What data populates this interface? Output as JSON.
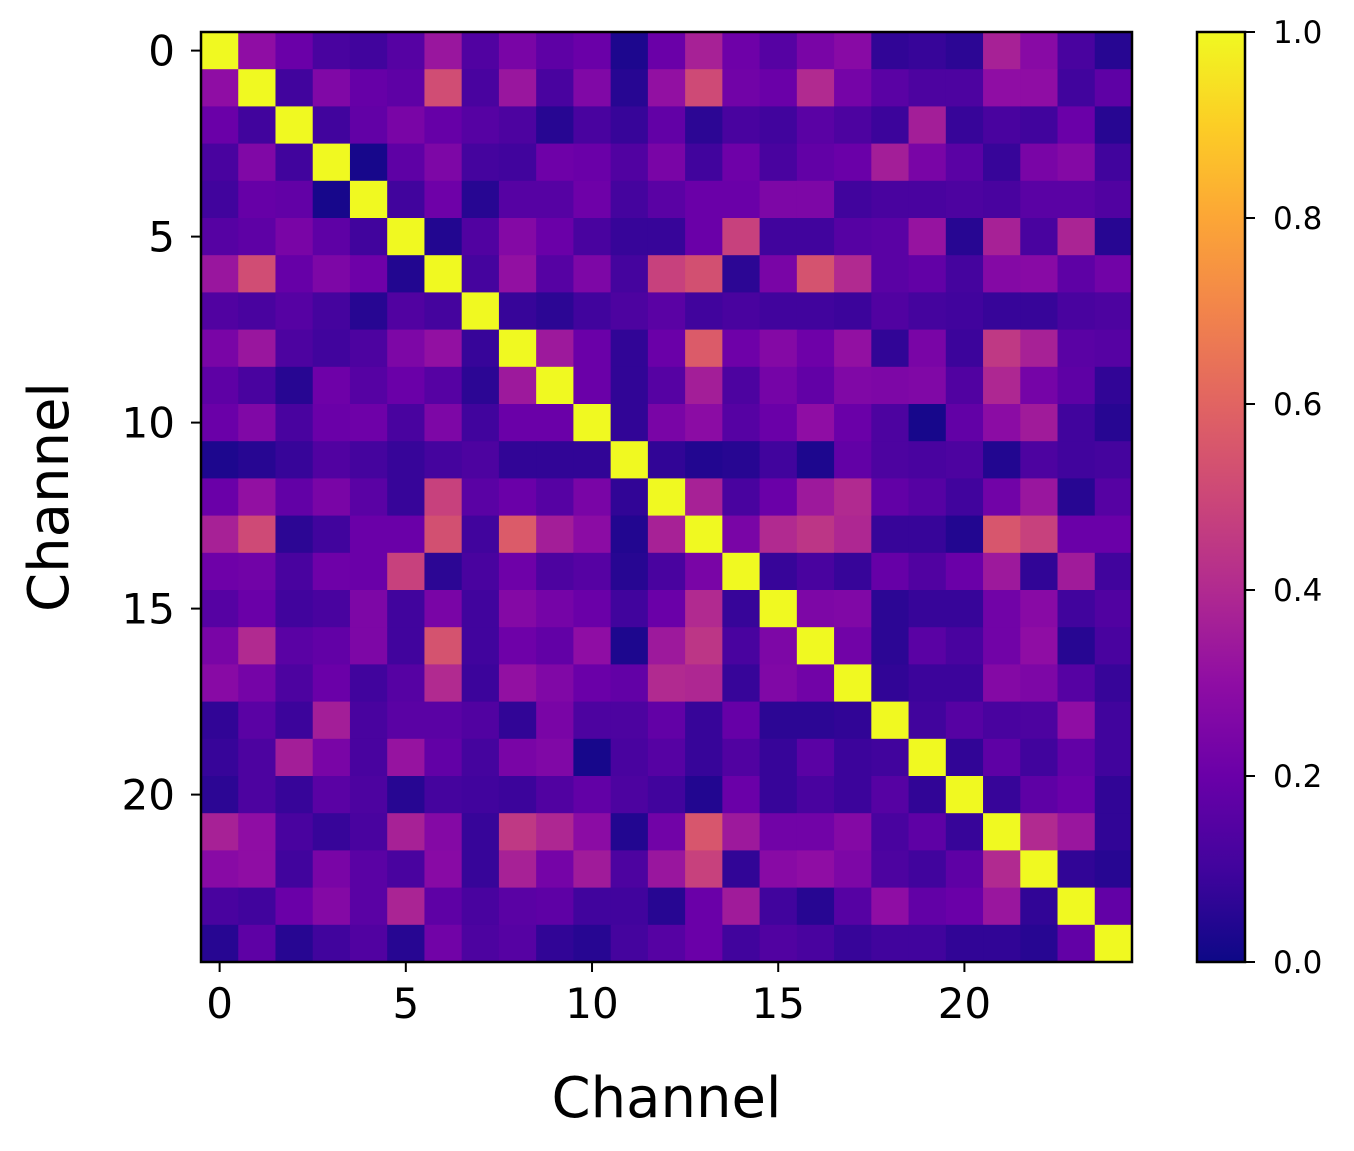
{
  "chart_data": {
    "type": "heatmap",
    "title": "",
    "xlabel": "Channel",
    "ylabel": "Channel",
    "colormap": "plasma",
    "clim": [
      0.0,
      1.0
    ],
    "n": 25,
    "xticks": [
      0,
      5,
      10,
      15,
      20
    ],
    "yticks": [
      0,
      5,
      10,
      15,
      20
    ],
    "xtick_labels": [
      "0",
      "5",
      "10",
      "15",
      "20"
    ],
    "ytick_labels": [
      "0",
      "5",
      "10",
      "15",
      "20"
    ],
    "colorbar_ticks": [
      0.0,
      0.2,
      0.4,
      0.6,
      0.8,
      1.0
    ],
    "colorbar_tick_labels": [
      "0.0",
      "0.2",
      "0.4",
      "0.6",
      "0.8",
      "1.0"
    ],
    "matrix": [
      [
        1.0,
        0.3,
        0.2,
        0.12,
        0.1,
        0.15,
        0.33,
        0.14,
        0.24,
        0.17,
        0.2,
        0.03,
        0.2,
        0.37,
        0.21,
        0.15,
        0.24,
        0.28,
        0.07,
        0.08,
        0.06,
        0.37,
        0.28,
        0.12,
        0.05
      ],
      [
        0.3,
        1.0,
        0.1,
        0.26,
        0.19,
        0.17,
        0.52,
        0.12,
        0.33,
        0.12,
        0.26,
        0.05,
        0.31,
        0.51,
        0.22,
        0.2,
        0.4,
        0.23,
        0.16,
        0.13,
        0.13,
        0.3,
        0.3,
        0.1,
        0.17
      ],
      [
        0.2,
        0.1,
        1.0,
        0.1,
        0.18,
        0.24,
        0.19,
        0.15,
        0.13,
        0.05,
        0.12,
        0.08,
        0.18,
        0.06,
        0.12,
        0.1,
        0.16,
        0.13,
        0.09,
        0.36,
        0.08,
        0.12,
        0.1,
        0.2,
        0.05
      ],
      [
        0.12,
        0.26,
        0.1,
        1.0,
        0.02,
        0.17,
        0.25,
        0.11,
        0.1,
        0.21,
        0.2,
        0.14,
        0.24,
        0.1,
        0.21,
        0.12,
        0.18,
        0.2,
        0.36,
        0.24,
        0.16,
        0.08,
        0.24,
        0.27,
        0.1
      ],
      [
        0.1,
        0.19,
        0.18,
        0.02,
        1.0,
        0.1,
        0.21,
        0.05,
        0.15,
        0.15,
        0.21,
        0.11,
        0.16,
        0.2,
        0.2,
        0.25,
        0.25,
        0.1,
        0.12,
        0.12,
        0.13,
        0.12,
        0.16,
        0.16,
        0.14
      ],
      [
        0.15,
        0.17,
        0.24,
        0.17,
        0.1,
        1.0,
        0.04,
        0.14,
        0.27,
        0.2,
        0.12,
        0.08,
        0.08,
        0.2,
        0.48,
        0.1,
        0.1,
        0.15,
        0.16,
        0.32,
        0.05,
        0.37,
        0.12,
        0.38,
        0.05
      ],
      [
        0.33,
        0.52,
        0.19,
        0.25,
        0.21,
        0.04,
        1.0,
        0.11,
        0.31,
        0.15,
        0.25,
        0.11,
        0.48,
        0.53,
        0.06,
        0.24,
        0.54,
        0.4,
        0.16,
        0.18,
        0.11,
        0.27,
        0.28,
        0.17,
        0.22
      ],
      [
        0.14,
        0.12,
        0.15,
        0.11,
        0.05,
        0.14,
        0.11,
        1.0,
        0.08,
        0.06,
        0.1,
        0.13,
        0.16,
        0.1,
        0.12,
        0.1,
        0.1,
        0.09,
        0.14,
        0.11,
        0.1,
        0.08,
        0.08,
        0.12,
        0.13
      ],
      [
        0.24,
        0.33,
        0.13,
        0.1,
        0.13,
        0.25,
        0.31,
        0.08,
        1.0,
        0.34,
        0.2,
        0.07,
        0.2,
        0.57,
        0.21,
        0.27,
        0.21,
        0.31,
        0.07,
        0.24,
        0.09,
        0.45,
        0.37,
        0.16,
        0.15
      ],
      [
        0.17,
        0.12,
        0.05,
        0.21,
        0.15,
        0.2,
        0.15,
        0.06,
        0.34,
        1.0,
        0.2,
        0.07,
        0.15,
        0.36,
        0.13,
        0.23,
        0.18,
        0.26,
        0.25,
        0.26,
        0.14,
        0.39,
        0.23,
        0.17,
        0.07
      ],
      [
        0.2,
        0.26,
        0.12,
        0.2,
        0.21,
        0.12,
        0.25,
        0.1,
        0.2,
        0.2,
        1.0,
        0.07,
        0.24,
        0.29,
        0.15,
        0.2,
        0.3,
        0.2,
        0.13,
        0.02,
        0.18,
        0.29,
        0.35,
        0.1,
        0.05
      ],
      [
        0.03,
        0.05,
        0.08,
        0.14,
        0.11,
        0.08,
        0.11,
        0.13,
        0.07,
        0.07,
        0.07,
        1.0,
        0.07,
        0.04,
        0.05,
        0.1,
        0.03,
        0.18,
        0.13,
        0.12,
        0.13,
        0.04,
        0.13,
        0.1,
        0.11
      ],
      [
        0.2,
        0.31,
        0.18,
        0.24,
        0.16,
        0.08,
        0.48,
        0.16,
        0.2,
        0.15,
        0.24,
        0.07,
        1.0,
        0.37,
        0.12,
        0.2,
        0.34,
        0.4,
        0.18,
        0.15,
        0.1,
        0.22,
        0.33,
        0.05,
        0.15
      ],
      [
        0.37,
        0.51,
        0.06,
        0.1,
        0.2,
        0.2,
        0.53,
        0.1,
        0.57,
        0.36,
        0.29,
        0.04,
        0.37,
        1.0,
        0.24,
        0.4,
        0.44,
        0.39,
        0.08,
        0.08,
        0.04,
        0.55,
        0.48,
        0.2,
        0.2
      ],
      [
        0.21,
        0.22,
        0.12,
        0.21,
        0.2,
        0.48,
        0.06,
        0.12,
        0.21,
        0.13,
        0.15,
        0.05,
        0.12,
        0.24,
        1.0,
        0.08,
        0.12,
        0.08,
        0.19,
        0.14,
        0.2,
        0.34,
        0.07,
        0.35,
        0.1
      ],
      [
        0.15,
        0.2,
        0.1,
        0.12,
        0.25,
        0.1,
        0.24,
        0.1,
        0.27,
        0.23,
        0.2,
        0.1,
        0.2,
        0.4,
        0.08,
        1.0,
        0.25,
        0.26,
        0.06,
        0.08,
        0.08,
        0.22,
        0.28,
        0.1,
        0.14
      ],
      [
        0.24,
        0.4,
        0.16,
        0.18,
        0.25,
        0.1,
        0.54,
        0.1,
        0.21,
        0.18,
        0.3,
        0.03,
        0.34,
        0.44,
        0.12,
        0.25,
        1.0,
        0.22,
        0.06,
        0.16,
        0.12,
        0.22,
        0.3,
        0.05,
        0.12
      ],
      [
        0.28,
        0.23,
        0.13,
        0.2,
        0.1,
        0.15,
        0.4,
        0.09,
        0.31,
        0.26,
        0.2,
        0.18,
        0.4,
        0.39,
        0.08,
        0.26,
        0.22,
        1.0,
        0.07,
        0.09,
        0.09,
        0.27,
        0.25,
        0.15,
        0.08
      ],
      [
        0.07,
        0.16,
        0.09,
        0.36,
        0.12,
        0.16,
        0.16,
        0.14,
        0.07,
        0.24,
        0.13,
        0.13,
        0.18,
        0.08,
        0.19,
        0.06,
        0.06,
        0.07,
        1.0,
        0.1,
        0.15,
        0.12,
        0.13,
        0.3,
        0.1
      ],
      [
        0.08,
        0.13,
        0.36,
        0.24,
        0.12,
        0.32,
        0.18,
        0.11,
        0.24,
        0.26,
        0.02,
        0.12,
        0.15,
        0.08,
        0.14,
        0.08,
        0.16,
        0.09,
        0.1,
        1.0,
        0.07,
        0.17,
        0.1,
        0.18,
        0.1
      ],
      [
        0.06,
        0.13,
        0.08,
        0.16,
        0.13,
        0.05,
        0.11,
        0.1,
        0.09,
        0.14,
        0.18,
        0.13,
        0.1,
        0.04,
        0.2,
        0.08,
        0.12,
        0.09,
        0.15,
        0.07,
        1.0,
        0.08,
        0.17,
        0.2,
        0.07
      ],
      [
        0.37,
        0.3,
        0.12,
        0.08,
        0.12,
        0.37,
        0.27,
        0.08,
        0.45,
        0.39,
        0.29,
        0.04,
        0.22,
        0.55,
        0.34,
        0.22,
        0.22,
        0.27,
        0.12,
        0.17,
        0.08,
        1.0,
        0.4,
        0.33,
        0.07
      ],
      [
        0.28,
        0.3,
        0.1,
        0.24,
        0.16,
        0.12,
        0.28,
        0.08,
        0.37,
        0.23,
        0.35,
        0.13,
        0.33,
        0.48,
        0.07,
        0.28,
        0.3,
        0.25,
        0.13,
        0.1,
        0.17,
        0.4,
        1.0,
        0.07,
        0.05
      ],
      [
        0.12,
        0.1,
        0.2,
        0.27,
        0.16,
        0.38,
        0.17,
        0.12,
        0.16,
        0.17,
        0.1,
        0.1,
        0.05,
        0.2,
        0.35,
        0.1,
        0.05,
        0.15,
        0.3,
        0.18,
        0.2,
        0.33,
        0.07,
        1.0,
        0.18
      ],
      [
        0.05,
        0.17,
        0.05,
        0.1,
        0.14,
        0.05,
        0.22,
        0.13,
        0.15,
        0.07,
        0.05,
        0.11,
        0.15,
        0.2,
        0.1,
        0.14,
        0.12,
        0.08,
        0.1,
        0.1,
        0.07,
        0.07,
        0.05,
        0.18,
        1.0
      ]
    ]
  }
}
